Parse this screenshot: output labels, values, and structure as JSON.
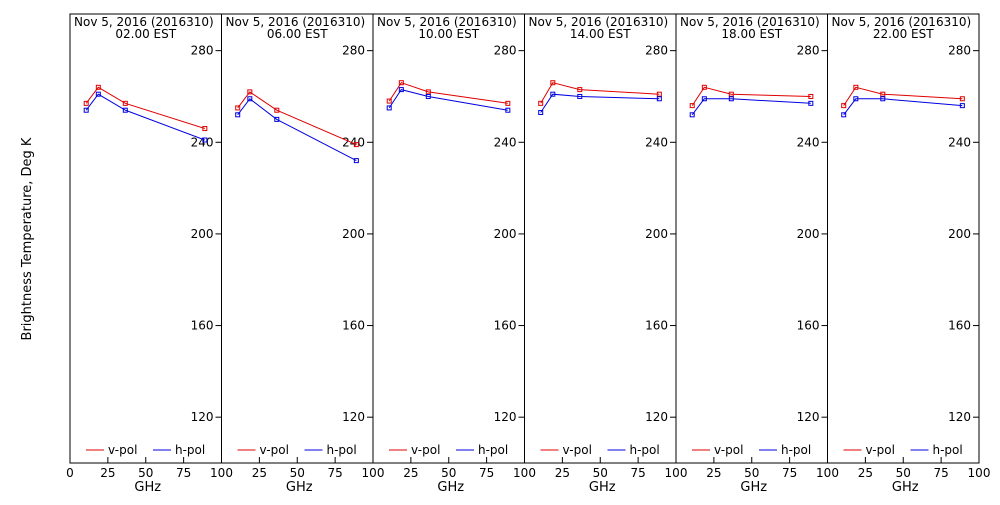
{
  "ylabel": "Brightness Temperature, Deg K",
  "xlabel": "GHz",
  "ytick_labels": [
    "120",
    "160",
    "200",
    "240",
    "280"
  ],
  "xtick_labels": [
    "0",
    "25",
    "50",
    "75",
    "100"
  ],
  "legend": {
    "vpol": "v-pol",
    "hpol": "h-pol"
  },
  "colors": {
    "vpol": "#e00000",
    "hpol": "#0000e0"
  },
  "chart_data": [
    {
      "type": "line",
      "title": "Nov  5, 2016 (2016310)",
      "subtitle": "02.00 EST",
      "xlim": [
        0,
        100
      ],
      "ylim": [
        100,
        296
      ],
      "x": [
        10.7,
        18.7,
        36.5,
        89.0
      ],
      "series": [
        {
          "name": "v-pol",
          "values": [
            257,
            264,
            257,
            246
          ]
        },
        {
          "name": "h-pol",
          "values": [
            254,
            261,
            254,
            241
          ]
        }
      ]
    },
    {
      "type": "line",
      "title": "Nov  5, 2016 (2016310)",
      "subtitle": "06.00 EST",
      "xlim": [
        0,
        100
      ],
      "ylim": [
        100,
        296
      ],
      "x": [
        10.7,
        18.7,
        36.5,
        89.0
      ],
      "series": [
        {
          "name": "v-pol",
          "values": [
            255,
            262,
            254,
            239
          ]
        },
        {
          "name": "h-pol",
          "values": [
            252,
            259,
            250,
            232
          ]
        }
      ]
    },
    {
      "type": "line",
      "title": "Nov  5, 2016 (2016310)",
      "subtitle": "10.00 EST",
      "xlim": [
        0,
        100
      ],
      "ylim": [
        100,
        296
      ],
      "x": [
        10.7,
        18.7,
        36.5,
        89.0
      ],
      "series": [
        {
          "name": "v-pol",
          "values": [
            258,
            266,
            262,
            257
          ]
        },
        {
          "name": "h-pol",
          "values": [
            255,
            263,
            260,
            254
          ]
        }
      ]
    },
    {
      "type": "line",
      "title": "Nov  5, 2016 (2016310)",
      "subtitle": "14.00 EST",
      "xlim": [
        0,
        100
      ],
      "ylim": [
        100,
        296
      ],
      "x": [
        10.7,
        18.7,
        36.5,
        89.0
      ],
      "series": [
        {
          "name": "v-pol",
          "values": [
            257,
            266,
            263,
            261
          ]
        },
        {
          "name": "h-pol",
          "values": [
            253,
            261,
            260,
            259
          ]
        }
      ]
    },
    {
      "type": "line",
      "title": "Nov  5, 2016 (2016310)",
      "subtitle": "18.00 EST",
      "xlim": [
        0,
        100
      ],
      "ylim": [
        100,
        296
      ],
      "x": [
        10.7,
        18.7,
        36.5,
        89.0
      ],
      "series": [
        {
          "name": "v-pol",
          "values": [
            256,
            264,
            261,
            260
          ]
        },
        {
          "name": "h-pol",
          "values": [
            252,
            259,
            259,
            257
          ]
        }
      ]
    },
    {
      "type": "line",
      "title": "Nov  5, 2016 (2016310)",
      "subtitle": "22.00 EST",
      "xlim": [
        0,
        100
      ],
      "ylim": [
        100,
        296
      ],
      "x": [
        10.7,
        18.7,
        36.5,
        89.0
      ],
      "series": [
        {
          "name": "v-pol",
          "values": [
            256,
            264,
            261,
            259
          ]
        },
        {
          "name": "h-pol",
          "values": [
            252,
            259,
            259,
            256
          ]
        }
      ]
    }
  ]
}
